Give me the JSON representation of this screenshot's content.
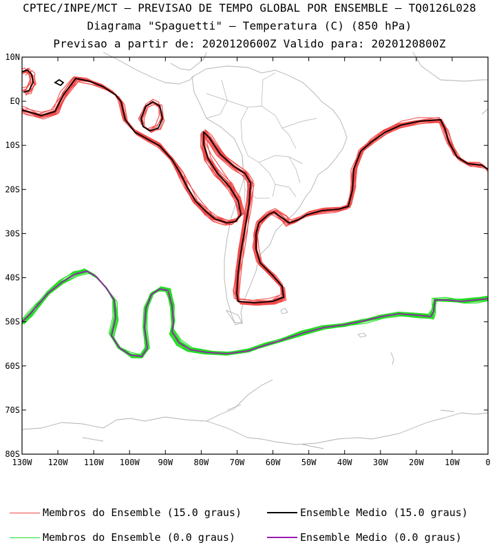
{
  "header": {
    "line1": "CPTEC/INPE/MCT – PREVISAO DE TEMPO GLOBAL POR ENSEMBLE – TQ0126L028",
    "line2": "Diagrama \"Spaguetti\" – Temperatura (C) (850 hPa)",
    "line3": "Previsao a partir de: 2020120600Z  Valido para: 2020120800Z"
  },
  "map": {
    "lat_labels": [
      "10N",
      "EQ",
      "10S",
      "20S",
      "30S",
      "40S",
      "50S",
      "60S",
      "70S",
      "80S"
    ],
    "lon_labels": [
      "130W",
      "120W",
      "110W",
      "100W",
      "90W",
      "80W",
      "70W",
      "60W",
      "50W",
      "40W",
      "30W",
      "20W",
      "10W",
      "0"
    ],
    "colors": {
      "member_15": "#f04848",
      "mean_15": "#000000",
      "member_0": "#22dd22",
      "mean_0": "#9a1ab0",
      "coast": "#b0b0b0"
    }
  },
  "legend": {
    "items": [
      {
        "label": "Membros do Ensemble (15.0 graus)",
        "color": "#f04848"
      },
      {
        "label": "Ensemble Medio (15.0 graus)",
        "color": "#000000"
      },
      {
        "label": "Membros do Ensemble (0.0 graus)",
        "color": "#22dd22"
      },
      {
        "label": "Ensemble Medio (0.0 graus)",
        "color": "#9a1ab0"
      }
    ]
  }
}
